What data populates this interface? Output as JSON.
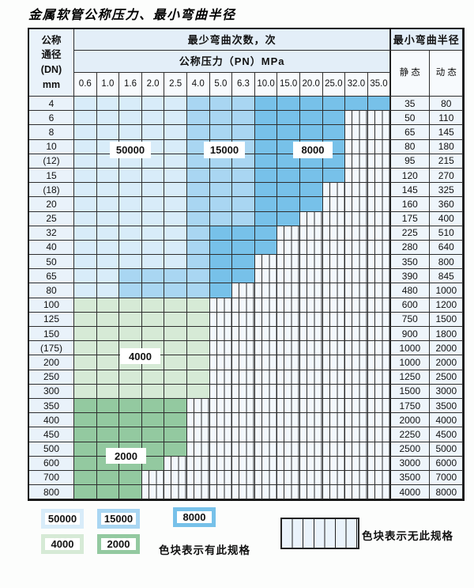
{
  "title": "金属软管公称压力、最小弯曲半径",
  "table": {
    "dn_header_lines": [
      "公称",
      "通径",
      "(DN)",
      "mm"
    ],
    "bend_times_header": "最少弯曲次数，次",
    "pressure_header": "公称压力（PN）MPa",
    "pressure_columns": [
      "0.6",
      "1.0",
      "1.6",
      "2.0",
      "2.5",
      "4.0",
      "5.0",
      "6.3",
      "10.0",
      "15.0",
      "20.0",
      "25.0",
      "32.0",
      "35.0"
    ],
    "radius_header": "最小弯曲半径",
    "static_header": "静 态",
    "dynamic_header": "动 态",
    "code_legend": {
      "L": "50000",
      "M": "15000",
      "D": "8000",
      "G": "4000",
      "H": "2000",
      "S": "no-spec-striped"
    },
    "rows": [
      {
        "dn": "4",
        "codes": "LLLLLMMMDDDDDD",
        "static": "35",
        "dynamic": "80"
      },
      {
        "dn": "6",
        "codes": "LLLLLMMMDDDDSS",
        "static": "50",
        "dynamic": "110"
      },
      {
        "dn": "8",
        "codes": "LLLLLMMMDDDDSS",
        "static": "65",
        "dynamic": "145"
      },
      {
        "dn": "10",
        "codes": "LLLLLMMMDDDDSS",
        "static": "80",
        "dynamic": "180"
      },
      {
        "dn": "(12)",
        "codes": "LLLLLMMMDDDDSS",
        "static": "95",
        "dynamic": "215"
      },
      {
        "dn": "15",
        "codes": "LLLLLMMMDDDDSS",
        "static": "120",
        "dynamic": "270"
      },
      {
        "dn": "(18)",
        "codes": "LLLLLMMMDDDSSS",
        "static": "145",
        "dynamic": "325"
      },
      {
        "dn": "20",
        "codes": "LLLLLMMMDDDSSS",
        "static": "160",
        "dynamic": "360"
      },
      {
        "dn": "25",
        "codes": "LLLLLMMMDDSSSS",
        "static": "175",
        "dynamic": "400"
      },
      {
        "dn": "32",
        "codes": "LLLLLMDDDSSSSS",
        "static": "225",
        "dynamic": "510"
      },
      {
        "dn": "40",
        "codes": "LLLLLMDDDSSSSS",
        "static": "280",
        "dynamic": "640"
      },
      {
        "dn": "50",
        "codes": "LLLLLMDDSSSSSS",
        "static": "350",
        "dynamic": "800"
      },
      {
        "dn": "65",
        "codes": "LLMMMMDDSSSSSS",
        "static": "390",
        "dynamic": "845"
      },
      {
        "dn": "80",
        "codes": "LLMMMMDSSSSSSS",
        "static": "480",
        "dynamic": "1000"
      },
      {
        "dn": "100",
        "codes": "GGGGGGSSSSSSSS",
        "static": "600",
        "dynamic": "1200"
      },
      {
        "dn": "125",
        "codes": "GGGGGGSSSSSSSS",
        "static": "750",
        "dynamic": "1500"
      },
      {
        "dn": "150",
        "codes": "GGGGGGSSSSSSSS",
        "static": "900",
        "dynamic": "1800"
      },
      {
        "dn": "(175)",
        "codes": "GGGGGGSSSSSSSS",
        "static": "1000",
        "dynamic": "2000"
      },
      {
        "dn": "200",
        "codes": "GGGGGGSSSSSSSS",
        "static": "1000",
        "dynamic": "2000"
      },
      {
        "dn": "250",
        "codes": "GGGGGGSSSSSSSS",
        "static": "1250",
        "dynamic": "2500"
      },
      {
        "dn": "300",
        "codes": "GGGGGGSSSSSSSS",
        "static": "1500",
        "dynamic": "3000"
      },
      {
        "dn": "350",
        "codes": "HHHHHSSSSSSSSS",
        "static": "1750",
        "dynamic": "3500"
      },
      {
        "dn": "400",
        "codes": "HHHHHSSSSSSSSS",
        "static": "2000",
        "dynamic": "4000"
      },
      {
        "dn": "450",
        "codes": "HHHHHSSSSSSSSS",
        "static": "2250",
        "dynamic": "4500"
      },
      {
        "dn": "500",
        "codes": "HHHHHSSSSSSSSS",
        "static": "2500",
        "dynamic": "5000"
      },
      {
        "dn": "600",
        "codes": "HHHHSSSSSSSSSS",
        "static": "3000",
        "dynamic": "6000"
      },
      {
        "dn": "700",
        "codes": "HHHSSSSSSSSSSS",
        "static": "3500",
        "dynamic": "7000"
      },
      {
        "dn": "800",
        "codes": "HHHSSSSSSSSSSS",
        "static": "4000",
        "dynamic": "8000"
      }
    ]
  },
  "region_labels": [
    {
      "text": "50000"
    },
    {
      "text": "15000"
    },
    {
      "text": "8000"
    },
    {
      "text": "4000"
    },
    {
      "text": "2000"
    }
  ],
  "legend": {
    "items": [
      {
        "value": "50000",
        "color": "#d8ecf9"
      },
      {
        "value": "15000",
        "color": "#a9d6f2"
      },
      {
        "value": "8000",
        "color": "#77c1e9"
      },
      {
        "value": "4000",
        "color": "#d6ead6"
      },
      {
        "value": "2000",
        "color": "#93c9a0"
      }
    ],
    "has_spec_note": "色块表示有此规格",
    "no_spec_note": "色块表示无此规格"
  },
  "colors": {
    "c50000": "#d8ecf9",
    "c15000": "#a9d6f2",
    "c8000": "#77c1e9",
    "c4000": "#d6ead6",
    "c2000": "#93c9a0",
    "no_spec_bg": "#f3f8fd",
    "grid_line": "#2e2e2e"
  }
}
